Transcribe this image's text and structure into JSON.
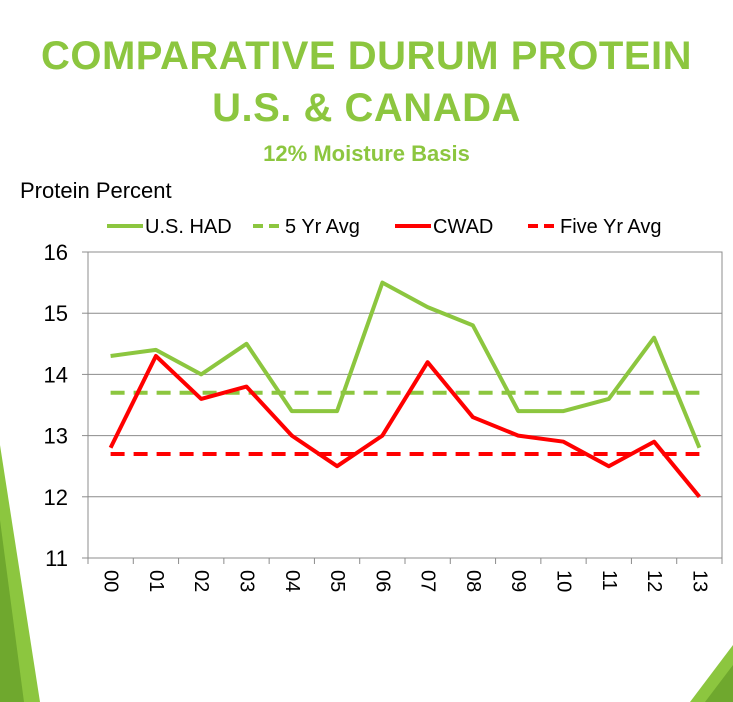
{
  "chart_data": {
    "type": "line",
    "title": "COMPARATIVE DURUM PROTEIN",
    "title_line2": "U.S. & CANADA",
    "subtitle": "12% Moisture Basis",
    "ylabel": "Protein Percent",
    "xlabel": "",
    "ylim": [
      11,
      16
    ],
    "yticks": [
      11,
      12,
      13,
      14,
      15,
      16
    ],
    "grid": true,
    "legend_position": "top",
    "categories": [
      "00",
      "01",
      "02",
      "03",
      "04",
      "05",
      "06",
      "07",
      "08",
      "09",
      "10",
      "11",
      "12",
      "13"
    ],
    "series": [
      {
        "name": "U.S. HAD",
        "color": "#8CC63F",
        "dashed": false,
        "values": [
          14.3,
          14.4,
          14.0,
          14.5,
          13.4,
          13.4,
          15.5,
          15.1,
          14.8,
          13.4,
          13.4,
          13.6,
          14.6,
          12.8
        ]
      },
      {
        "name": "5 Yr Avg",
        "color": "#8CC63F",
        "dashed": true,
        "values": [
          13.7,
          13.7,
          13.7,
          13.7,
          13.7,
          13.7,
          13.7,
          13.7,
          13.7,
          13.7,
          13.7,
          13.7,
          13.7,
          13.7
        ]
      },
      {
        "name": "CWAD",
        "color": "#FF0000",
        "dashed": false,
        "values": [
          12.8,
          14.3,
          13.6,
          13.8,
          13.0,
          12.5,
          13.0,
          14.2,
          13.3,
          13.0,
          12.9,
          12.5,
          12.9,
          12.0
        ]
      },
      {
        "name": "Five Yr Avg",
        "color": "#FF0000",
        "dashed": true,
        "values": [
          12.7,
          12.7,
          12.7,
          12.7,
          12.7,
          12.7,
          12.7,
          12.7,
          12.7,
          12.7,
          12.7,
          12.7,
          12.7,
          12.7
        ]
      }
    ]
  },
  "colors": {
    "accent_green": "#8CC63F",
    "accent_red": "#FF0000"
  }
}
